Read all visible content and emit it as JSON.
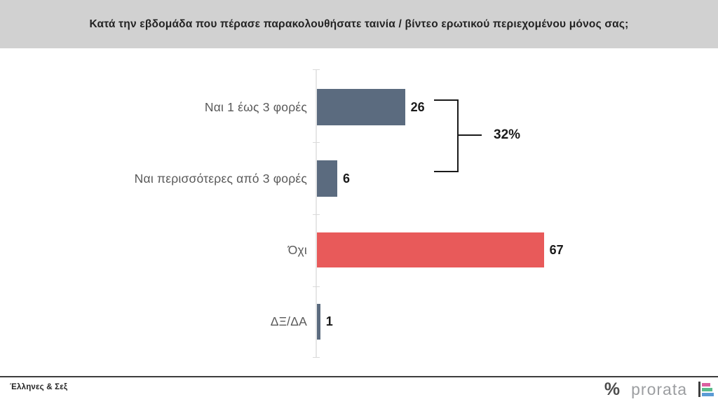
{
  "header": {
    "title": "Κατά την εβδομάδα που πέρασε παρακολουθήσατε ταινία / βίντεο ερωτικού περιεχομένου μόνος σας;"
  },
  "chart_data": {
    "type": "bar",
    "orientation": "horizontal",
    "title": "Κατά την εβδομάδα που πέρασε παρακολουθήσατε ταινία / βίντεο ερωτικού περιεχομένου μόνος σας;",
    "categories": [
      "Ναι 1 έως 3 φορές",
      "Ναι περισσότερες από 3 φορές",
      "Όχι",
      "ΔΞ/ΔΑ"
    ],
    "values": [
      26,
      6,
      67,
      1
    ],
    "bar_colors": [
      "#5b6b7f",
      "#5b6b7f",
      "#e85a5a",
      "#5b6b7f"
    ],
    "value_labels": "end of bar",
    "xlim": [
      0,
      100
    ],
    "grid": false,
    "group_annotation": {
      "label": "32%",
      "value": 32,
      "covers_categories": [
        "Ναι 1 έως 3 φορές",
        "Ναι περισσότερες από 3 φορές"
      ]
    }
  },
  "footer": {
    "source_label": "Έλληνες & Σεξ",
    "brand": {
      "percent_glyph": "%",
      "name": "prorata",
      "icon_bar_colors": [
        "#db5fa0",
        "#5abb8b",
        "#5b9bd5"
      ],
      "icon_axis_color": "#3f3f3f"
    }
  }
}
